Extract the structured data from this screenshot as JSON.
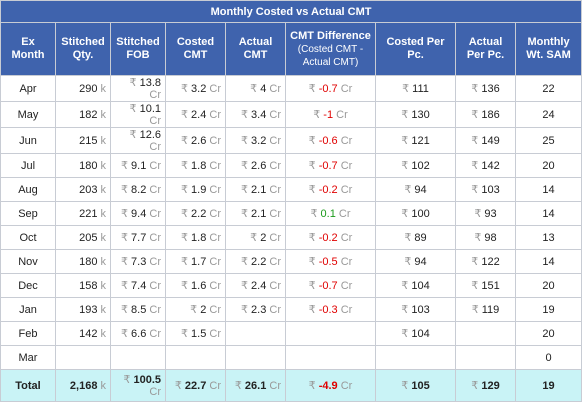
{
  "title": "Monthly Costed vs Actual CMT",
  "header": [
    "Ex Month",
    "Stitched Qty.",
    "Stitched FOB",
    "Costed CMT",
    "Actual CMT",
    {
      "main": "CMT Difference",
      "sub": "(Costed CMT - Actual CMT)"
    },
    "Costed Per Pc.",
    "Actual Per Pc.",
    "Monthly Wt. SAM"
  ],
  "rows": [
    [
      "Apr",
      [
        "290",
        "k"
      ],
      [
        "₹",
        "13.8",
        "Cr"
      ],
      [
        "₹",
        "3.2",
        "Cr"
      ],
      [
        "₹",
        "4",
        "Cr"
      ],
      [
        "₹",
        "-0.7",
        "Cr"
      ],
      [
        "₹",
        "111"
      ],
      [
        "₹",
        "136"
      ],
      "22"
    ],
    [
      "May",
      [
        "182",
        "k"
      ],
      [
        "₹",
        "10.1",
        "Cr"
      ],
      [
        "₹",
        "2.4",
        "Cr"
      ],
      [
        "₹",
        "3.4",
        "Cr"
      ],
      [
        "₹",
        "-1",
        "Cr"
      ],
      [
        "₹",
        "130"
      ],
      [
        "₹",
        "186"
      ],
      "24"
    ],
    [
      "Jun",
      [
        "215",
        "k"
      ],
      [
        "₹",
        "12.6",
        "Cr"
      ],
      [
        "₹",
        "2.6",
        "Cr"
      ],
      [
        "₹",
        "3.2",
        "Cr"
      ],
      [
        "₹",
        "-0.6",
        "Cr"
      ],
      [
        "₹",
        "121"
      ],
      [
        "₹",
        "149"
      ],
      "25"
    ],
    [
      "Jul",
      [
        "180",
        "k"
      ],
      [
        "₹",
        "9.1",
        "Cr"
      ],
      [
        "₹",
        "1.8",
        "Cr"
      ],
      [
        "₹",
        "2.6",
        "Cr"
      ],
      [
        "₹",
        "-0.7",
        "Cr"
      ],
      [
        "₹",
        "102"
      ],
      [
        "₹",
        "142"
      ],
      "20"
    ],
    [
      "Aug",
      [
        "203",
        "k"
      ],
      [
        "₹",
        "8.2",
        "Cr"
      ],
      [
        "₹",
        "1.9",
        "Cr"
      ],
      [
        "₹",
        "2.1",
        "Cr"
      ],
      [
        "₹",
        "-0.2",
        "Cr"
      ],
      [
        "₹",
        "94"
      ],
      [
        "₹",
        "103"
      ],
      "14"
    ],
    [
      "Sep",
      [
        "221",
        "k"
      ],
      [
        "₹",
        "9.4",
        "Cr"
      ],
      [
        "₹",
        "2.2",
        "Cr"
      ],
      [
        "₹",
        "2.1",
        "Cr"
      ],
      [
        "₹",
        "0.1",
        "Cr"
      ],
      [
        "₹",
        "100"
      ],
      [
        "₹",
        "93"
      ],
      "14"
    ],
    [
      "Oct",
      [
        "205",
        "k"
      ],
      [
        "₹",
        "7.7",
        "Cr"
      ],
      [
        "₹",
        "1.8",
        "Cr"
      ],
      [
        "₹",
        "2",
        "Cr"
      ],
      [
        "₹",
        "-0.2",
        "Cr"
      ],
      [
        "₹",
        "89"
      ],
      [
        "₹",
        "98"
      ],
      "13"
    ],
    [
      "Nov",
      [
        "180",
        "k"
      ],
      [
        "₹",
        "7.3",
        "Cr"
      ],
      [
        "₹",
        "1.7",
        "Cr"
      ],
      [
        "₹",
        "2.2",
        "Cr"
      ],
      [
        "₹",
        "-0.5",
        "Cr"
      ],
      [
        "₹",
        "94"
      ],
      [
        "₹",
        "122"
      ],
      "14"
    ],
    [
      "Dec",
      [
        "158",
        "k"
      ],
      [
        "₹",
        "7.4",
        "Cr"
      ],
      [
        "₹",
        "1.6",
        "Cr"
      ],
      [
        "₹",
        "2.4",
        "Cr"
      ],
      [
        "₹",
        "-0.7",
        "Cr"
      ],
      [
        "₹",
        "104"
      ],
      [
        "₹",
        "151"
      ],
      "20"
    ],
    [
      "Jan",
      [
        "193",
        "k"
      ],
      [
        "₹",
        "8.5",
        "Cr"
      ],
      [
        "₹",
        "2",
        "Cr"
      ],
      [
        "₹",
        "2.3",
        "Cr"
      ],
      [
        "₹",
        "-0.3",
        "Cr"
      ],
      [
        "₹",
        "103"
      ],
      [
        "₹",
        "119"
      ],
      "19"
    ],
    [
      "Feb",
      [
        "142",
        "k"
      ],
      [
        "₹",
        "6.6",
        "Cr"
      ],
      [
        "₹",
        "1.5",
        "Cr"
      ],
      null,
      null,
      [
        "₹",
        "104"
      ],
      null,
      "20"
    ],
    [
      "Mar",
      null,
      null,
      null,
      null,
      null,
      null,
      null,
      "0"
    ]
  ],
  "total": [
    "Total",
    [
      "2,168",
      "k"
    ],
    [
      "₹",
      "100.5",
      "Cr"
    ],
    [
      "₹",
      "22.7",
      "Cr"
    ],
    [
      "₹",
      "26.1",
      "Cr"
    ],
    [
      "₹",
      "-4.9",
      "Cr"
    ],
    [
      "₹",
      "105"
    ],
    [
      "₹",
      "129"
    ],
    "19"
  ]
}
